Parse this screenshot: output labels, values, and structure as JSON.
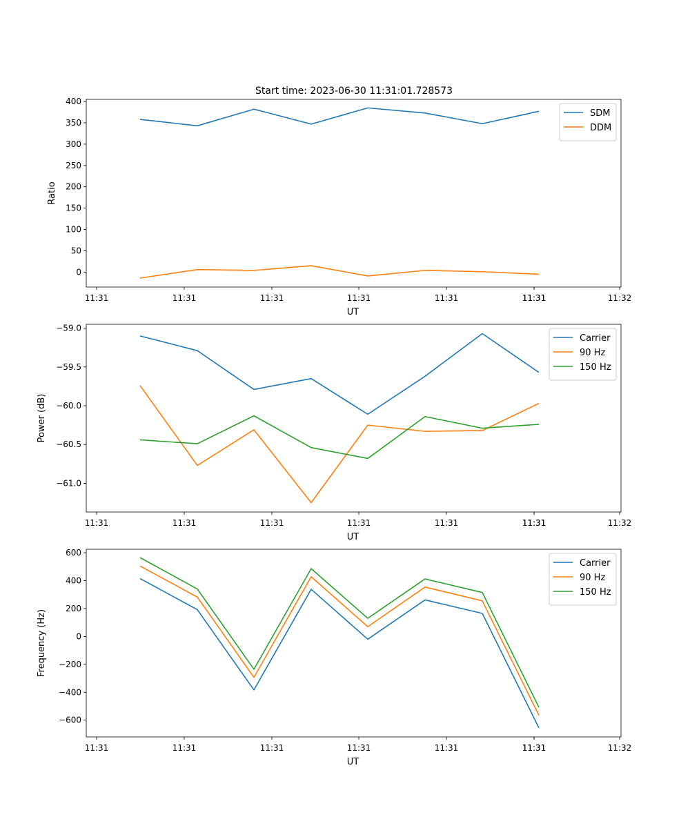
{
  "figure_title": "Start time: 2023-06-30 11:31:01.728573",
  "colors": {
    "blue": "#1f77b4",
    "orange": "#ff7f0e",
    "green": "#2ca02c"
  },
  "chart_data": [
    {
      "type": "line",
      "title": "Start time: 2023-06-30 11:31:01.728573",
      "xlabel": "UT",
      "ylabel": "Ratio",
      "x_tick_labels": [
        "11:31",
        "11:31",
        "11:31",
        "11:31",
        "11:31",
        "11:31",
        "11:31",
        "11:32"
      ],
      "ylim": [
        -35,
        405
      ],
      "y_ticks": [
        0,
        50,
        100,
        150,
        200,
        250,
        300,
        350,
        400
      ],
      "y_tick_labels": [
        "0",
        "50",
        "100",
        "150",
        "200",
        "250",
        "300",
        "350",
        "400"
      ],
      "legend": "top-right",
      "grid": false,
      "series": [
        {
          "name": "SDM",
          "color": "#1f77b4",
          "values": [
            358,
            343,
            382,
            347,
            385,
            373,
            348,
            377
          ]
        },
        {
          "name": "DDM",
          "color": "#ff7f0e",
          "values": [
            -14,
            6,
            4,
            15,
            -9,
            4,
            1,
            -5
          ]
        }
      ]
    },
    {
      "type": "line",
      "xlabel": "UT",
      "ylabel": "Power (dB)",
      "x_tick_labels": [
        "11:31",
        "11:31",
        "11:31",
        "11:31",
        "11:31",
        "11:31",
        "11:31",
        "11:32"
      ],
      "ylim": [
        -61.37,
        -58.95
      ],
      "y_ticks": [
        -61.0,
        -60.5,
        -60.0,
        -59.5,
        -59.0
      ],
      "y_tick_labels": [
        "−61.0",
        "−60.5",
        "−60.0",
        "−59.5",
        "−59.0"
      ],
      "legend": "top-right",
      "grid": false,
      "series": [
        {
          "name": "Carrier",
          "color": "#1f77b4",
          "values": [
            -59.1,
            -59.29,
            -59.79,
            -59.65,
            -60.11,
            -59.62,
            -59.07,
            -59.57
          ]
        },
        {
          "name": "90 Hz",
          "color": "#ff7f0e",
          "values": [
            -59.74,
            -60.77,
            -60.31,
            -61.25,
            -60.25,
            -60.33,
            -60.32,
            -59.97
          ]
        },
        {
          "name": "150 Hz",
          "color": "#2ca02c",
          "values": [
            -60.44,
            -60.49,
            -60.13,
            -60.54,
            -60.68,
            -60.14,
            -60.29,
            -60.24
          ]
        }
      ]
    },
    {
      "type": "line",
      "xlabel": "UT",
      "ylabel": "Frequency (Hz)",
      "x_tick_labels": [
        "11:31",
        "11:31",
        "11:31",
        "11:31",
        "11:31",
        "11:31",
        "11:31",
        "11:32"
      ],
      "ylim": [
        -720,
        625
      ],
      "y_ticks": [
        -600,
        -400,
        -200,
        0,
        200,
        400,
        600
      ],
      "y_tick_labels": [
        "−600",
        "−400",
        "−200",
        "0",
        "200",
        "400",
        "600"
      ],
      "legend": "top-right",
      "grid": false,
      "series": [
        {
          "name": "Carrier",
          "color": "#1f77b4",
          "values": [
            415,
            192,
            -383,
            338,
            -20,
            262,
            165,
            -655
          ]
        },
        {
          "name": "90 Hz",
          "color": "#ff7f0e",
          "values": [
            505,
            282,
            -293,
            428,
            70,
            354,
            255,
            -565
          ]
        },
        {
          "name": "150 Hz",
          "color": "#2ca02c",
          "values": [
            565,
            340,
            -235,
            486,
            130,
            412,
            315,
            -508
          ]
        }
      ]
    }
  ]
}
